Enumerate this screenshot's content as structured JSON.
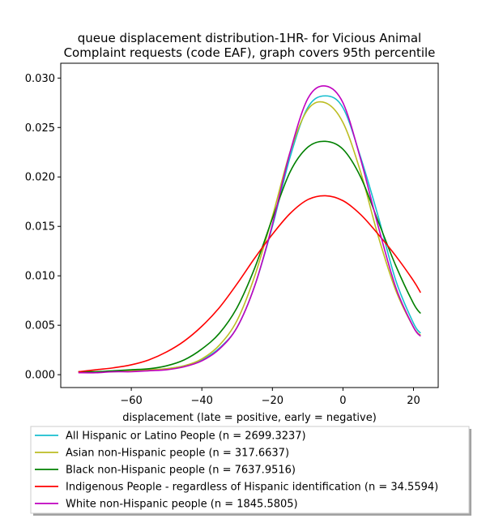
{
  "chart_data": {
    "type": "line",
    "title": [
      "queue displacement distribution-1HR-  for Vicious Animal",
      "Complaint  requests (code EAF), graph covers 95th percentile"
    ],
    "xlabel": "displacement (late = positive, early = negative)",
    "ylabel": "",
    "xlim": [
      -80,
      27
    ],
    "ylim": [
      -0.0013,
      0.0315
    ],
    "x_ticks": [
      -60,
      -40,
      -20,
      0,
      20
    ],
    "y_ticks": [
      0.0,
      0.005,
      0.01,
      0.015,
      0.02,
      0.025,
      0.03
    ],
    "x_tick_labels": [
      "−60",
      "−40",
      "−20",
      "0",
      "20"
    ],
    "y_tick_labels": [
      "0.000",
      "0.005",
      "0.010",
      "0.015",
      "0.020",
      "0.025",
      "0.030"
    ],
    "x": [
      -75,
      -70,
      -65,
      -60,
      -55,
      -50,
      -45,
      -40,
      -35,
      -30,
      -25,
      -20,
      -15,
      -10,
      -5,
      0,
      5,
      10,
      15,
      20,
      22
    ],
    "series": [
      {
        "name": "All Hispanic or Latino People (n = 2699.3237)",
        "color": "#17becf",
        "values": [
          0.0003,
          0.0003,
          0.0003,
          0.0004,
          0.0005,
          0.0006,
          0.0009,
          0.0015,
          0.0027,
          0.0048,
          0.009,
          0.015,
          0.022,
          0.027,
          0.0282,
          0.027,
          0.022,
          0.016,
          0.0095,
          0.0052,
          0.0042
        ]
      },
      {
        "name": "Asian non-Hispanic people (n = 317.6637)",
        "color": "#bcbd22",
        "values": [
          0.0003,
          0.0003,
          0.0003,
          0.0004,
          0.0005,
          0.0006,
          0.0009,
          0.0016,
          0.003,
          0.0055,
          0.01,
          0.016,
          0.0225,
          0.0268,
          0.0275,
          0.0255,
          0.0205,
          0.014,
          0.0085,
          0.0048,
          0.004
        ]
      },
      {
        "name": "Black non-Hispanic people (n = 7637.9516)",
        "color": "#008000",
        "values": [
          0.0003,
          0.0003,
          0.0004,
          0.0005,
          0.0006,
          0.0009,
          0.0015,
          0.0026,
          0.0042,
          0.0068,
          0.0108,
          0.0158,
          0.0205,
          0.023,
          0.0236,
          0.0228,
          0.02,
          0.0155,
          0.011,
          0.0072,
          0.0062
        ]
      },
      {
        "name": "Indigenous People - regardless of Hispanic identification (n = 34.5594)",
        "color": "#ff0000",
        "values": [
          0.0003,
          0.0005,
          0.0007,
          0.001,
          0.0015,
          0.0023,
          0.0034,
          0.0049,
          0.0068,
          0.0092,
          0.0118,
          0.0142,
          0.0163,
          0.0177,
          0.0181,
          0.0176,
          0.0162,
          0.0142,
          0.012,
          0.0095,
          0.0083
        ]
      },
      {
        "name": "White non-Hispanic people (n = 1845.5805)",
        "color": "#bf00bf",
        "values": [
          0.0002,
          0.0002,
          0.0003,
          0.0003,
          0.0004,
          0.0005,
          0.0008,
          0.0014,
          0.0026,
          0.0048,
          0.009,
          0.0152,
          0.0225,
          0.0279,
          0.0292,
          0.0275,
          0.0218,
          0.015,
          0.0088,
          0.0048,
          0.0039
        ]
      }
    ],
    "grid": false,
    "legend_position": "bottom"
  }
}
